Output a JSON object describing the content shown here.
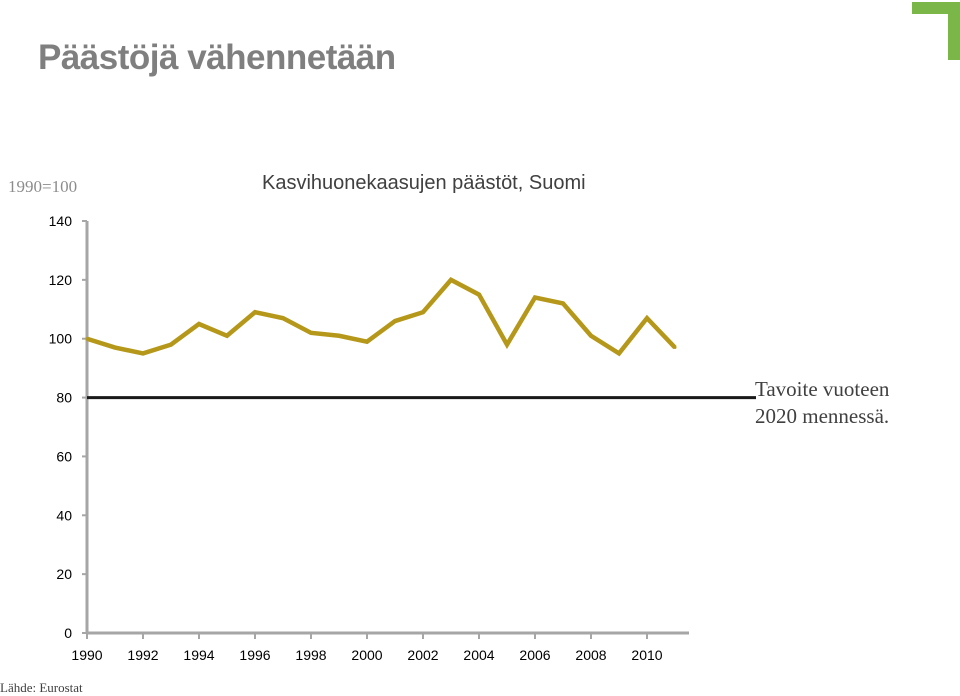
{
  "page": {
    "title": "Päästöjä vähennetään",
    "index_note": "1990=100",
    "target_note_line1": "Tavoite vuoteen",
    "target_note_line2": "2020 mennessä.",
    "source": "Lähde: Eurostat"
  },
  "colors": {
    "series": "#b5981a",
    "target": "#1a1a1a",
    "axis": "#a6a6a6",
    "logo": "#7ab648"
  },
  "chart_data": {
    "type": "line",
    "title": "Kasvihuonekaasujen päästöt, Suomi",
    "xlabel": "",
    "ylabel": "1990=100",
    "ylim": [
      0,
      140
    ],
    "yticks": [
      0,
      20,
      40,
      60,
      80,
      100,
      120,
      140
    ],
    "xlim": [
      1990,
      2011
    ],
    "xticks": [
      1990,
      1992,
      1994,
      1996,
      1998,
      2000,
      2002,
      2004,
      2006,
      2008,
      2010
    ],
    "series": [
      {
        "name": "Kasvihuonekaasujen päästöt",
        "x": [
          1990,
          1991,
          1992,
          1993,
          1994,
          1995,
          1996,
          1997,
          1998,
          1999,
          2000,
          2001,
          2002,
          2003,
          2004,
          2005,
          2006,
          2007,
          2008,
          2009,
          2010,
          2011
        ],
        "values": [
          100,
          97,
          95,
          98,
          105,
          101,
          109,
          107,
          102,
          101,
          99,
          106,
          109,
          120,
          115,
          98,
          114,
          112,
          101,
          95,
          107,
          97
        ]
      }
    ],
    "target": {
      "value": 80,
      "x_end": 2013
    }
  }
}
